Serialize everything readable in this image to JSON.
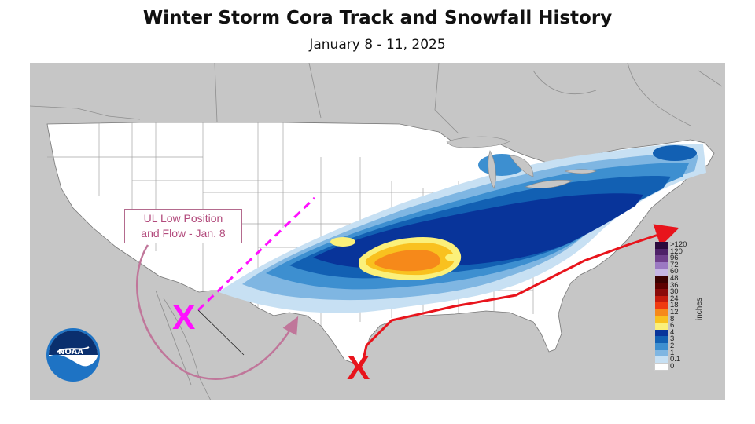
{
  "header": {
    "title": "Winter Storm Cora Track and Snowfall History",
    "subtitle": "January 8 - 11, 2025"
  },
  "annotation": {
    "ul_low_label_line1": "UL Low Position",
    "ul_low_label_line2": "and Flow - Jan. 8",
    "ul_low_marker": "X",
    "surface_low_marker": "X",
    "ul_color": "#ff10ff",
    "surface_track_color": "#e8141c",
    "flow_arrow_color": "#c0769a"
  },
  "legend": {
    "unit": "inches",
    "entries": [
      {
        "label": ">120",
        "color": "#2b0a3d"
      },
      {
        "label": "120",
        "color": "#4e2168"
      },
      {
        "label": "96",
        "color": "#6f3f8c"
      },
      {
        "label": "72",
        "color": "#9b79c2"
      },
      {
        "label": "60",
        "color": "#c6b6e3"
      },
      {
        "label": "48",
        "color": "#3a0000"
      },
      {
        "label": "36",
        "color": "#5c0000"
      },
      {
        "label": "30",
        "color": "#8a0a0a"
      },
      {
        "label": "24",
        "color": "#c51b0e"
      },
      {
        "label": "18",
        "color": "#ef3a12"
      },
      {
        "label": "12",
        "color": "#f6891a"
      },
      {
        "label": "8",
        "color": "#f9c11f"
      },
      {
        "label": "6",
        "color": "#fbf07a"
      },
      {
        "label": "4",
        "color": "#08349a"
      },
      {
        "label": "3",
        "color": "#1260b3"
      },
      {
        "label": "2",
        "color": "#3d8fd0"
      },
      {
        "label": "1",
        "color": "#7fb6e2"
      },
      {
        "label": "0.1",
        "color": "#c7e0f3"
      },
      {
        "label": "0",
        "color": "#ffffff"
      }
    ]
  },
  "logo": {
    "text": "NOAA"
  },
  "colors": {
    "outside_us": "#c6c6c6",
    "us_background": "#ffffff",
    "state_lines": "#9a9a9a"
  }
}
